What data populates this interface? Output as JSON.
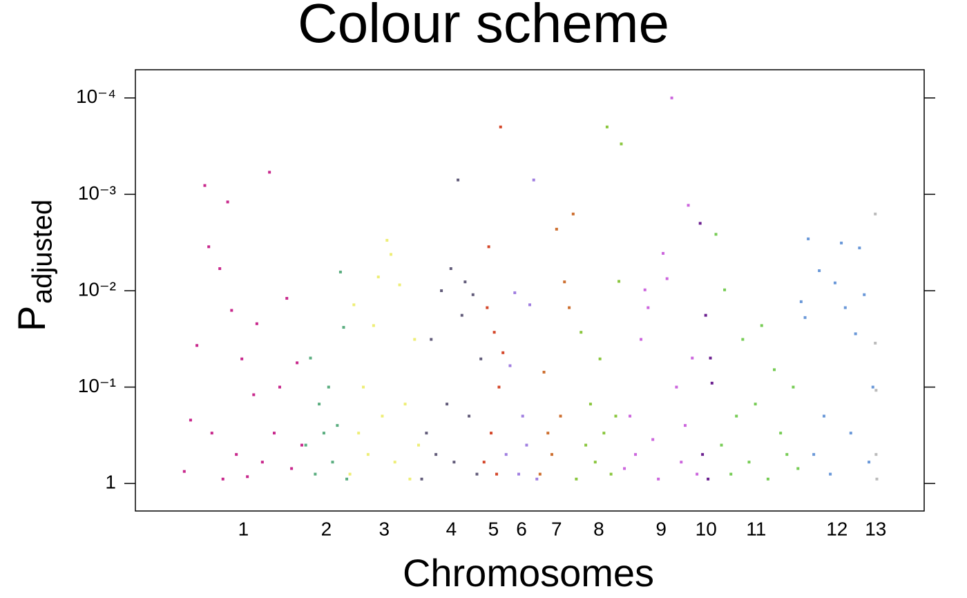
{
  "chart_data": {
    "type": "scatter",
    "title": "Colour scheme",
    "xlabel": "Chromosomes",
    "ylabel": "P",
    "ylabel_subscript": "adjusted",
    "log_y": true,
    "xlim": [
      0,
      100
    ],
    "ylim": [
      1.93,
      5.1e-05
    ],
    "yticks": [
      1,
      {
        "value": 0.1,
        "label": "10⁻¹"
      },
      {
        "value": 0.01,
        "label": "10⁻²"
      },
      {
        "value": 0.001,
        "label": "10⁻³"
      },
      {
        "value": 0.0001,
        "label": "10⁻⁴"
      }
    ],
    "series": [
      {
        "name": "1",
        "color": "#c8288c",
        "start": 6.0,
        "end": 21.4,
        "x": [
          6.2,
          7.0,
          7.8,
          8.8,
          9.3,
          9.7,
          10.7,
          11.1,
          11.7,
          12.2,
          12.8,
          13.5,
          14.2,
          15.0,
          15.4,
          16.1,
          17.0,
          17.6,
          18.3,
          19.2,
          19.8,
          20.5,
          21.1
        ],
        "values": [
          0.75,
          0.22,
          0.037,
          0.00081,
          0.0035,
          0.3,
          0.0059,
          0.9,
          0.0012,
          0.016,
          0.5,
          0.051,
          0.85,
          0.12,
          0.022,
          0.6,
          0.00059,
          0.3,
          0.1,
          0.012,
          0.7,
          0.056,
          0.4
        ]
      },
      {
        "name": "2",
        "color": "#5aad7f",
        "start": 21.4,
        "end": 27.0,
        "x": [
          21.6,
          22.2,
          22.8,
          23.3,
          23.9,
          24.5,
          25.0,
          25.6,
          26.0,
          26.4,
          26.8
        ],
        "values": [
          0.4,
          0.05,
          0.8,
          0.15,
          0.3,
          0.1,
          0.6,
          0.25,
          0.0064,
          0.024,
          0.9
        ]
      },
      {
        "name": "3",
        "color": "#eeee77",
        "start": 27.0,
        "end": 36.1,
        "x": [
          27.2,
          27.7,
          28.3,
          28.9,
          29.5,
          30.2,
          30.8,
          31.3,
          31.9,
          32.4,
          32.9,
          33.5,
          34.2,
          34.8,
          35.4,
          35.9
        ],
        "values": [
          0.8,
          0.014,
          0.3,
          0.1,
          0.5,
          0.023,
          0.0072,
          0.2,
          0.003,
          0.0042,
          0.6,
          0.0087,
          0.15,
          0.9,
          0.032,
          0.4
        ]
      },
      {
        "name": "4",
        "color": "#625c7a",
        "start": 36.1,
        "end": 44.0,
        "x": [
          36.3,
          36.9,
          37.5,
          38.1,
          38.8,
          39.5,
          40.0,
          40.4,
          40.9,
          41.4,
          41.8,
          42.3,
          42.8,
          43.3,
          43.8
        ],
        "values": [
          0.9,
          0.3,
          0.032,
          0.5,
          0.01,
          0.15,
          0.0059,
          0.6,
          0.00071,
          0.018,
          0.0081,
          0.2,
          0.011,
          0.8,
          0.051
        ]
      },
      {
        "name": "5",
        "color": "#d4472a",
        "start": 44.0,
        "end": 46.8,
        "x": [
          44.2,
          44.6,
          44.8,
          45.1,
          45.5,
          45.8,
          46.1,
          46.3,
          46.6
        ],
        "values": [
          0.6,
          0.015,
          0.0035,
          0.3,
          0.027,
          0.8,
          0.1,
          0.0002,
          0.044
        ]
      },
      {
        "name": "6",
        "color": "#a07ee0",
        "start": 46.8,
        "end": 51.1,
        "x": [
          47.0,
          47.5,
          48.1,
          48.6,
          49.1,
          49.6,
          50.0,
          50.5,
          50.9
        ],
        "values": [
          0.5,
          0.06,
          0.0105,
          0.8,
          0.2,
          0.4,
          0.014,
          0.00071,
          0.9
        ]
      },
      {
        "name": "7",
        "color": "#cd6f30",
        "start": 51.1,
        "end": 55.7,
        "x": [
          51.3,
          51.8,
          52.3,
          52.8,
          53.4,
          53.9,
          54.4,
          55.0,
          55.5
        ],
        "values": [
          0.8,
          0.07,
          0.3,
          0.5,
          0.0023,
          0.2,
          0.0081,
          0.015,
          0.0016
        ]
      },
      {
        "name": "8",
        "color": "#8ac63e",
        "start": 55.7,
        "end": 61.8,
        "x": [
          55.9,
          56.5,
          57.1,
          57.7,
          58.3,
          58.9,
          59.4,
          59.8,
          60.3,
          60.9,
          61.3,
          61.6
        ],
        "values": [
          0.9,
          0.027,
          0.4,
          0.15,
          0.6,
          0.051,
          0.3,
          0.0002,
          0.8,
          0.2,
          0.008,
          0.0003
        ]
      },
      {
        "name": "9",
        "color": "#cc66dd",
        "start": 61.8,
        "end": 71.5,
        "x": [
          62.0,
          62.7,
          63.4,
          64.1,
          64.6,
          65.0,
          65.6,
          66.3,
          66.9,
          67.4,
          68.0,
          68.6,
          69.2,
          69.7,
          70.1,
          70.6,
          71.2
        ],
        "values": [
          0.7,
          0.2,
          0.5,
          0.032,
          0.0098,
          0.015,
          0.35,
          0.9,
          0.0041,
          0.0075,
          0.0001,
          0.1,
          0.6,
          0.25,
          0.0013,
          0.05,
          0.8
        ]
      },
      {
        "name": "10",
        "color": "#6b1f8f",
        "start": 71.5,
        "end": 73.2,
        "x": [
          71.6,
          71.9,
          72.3,
          72.6,
          72.9,
          73.1
        ],
        "values": [
          0.002,
          0.5,
          0.018,
          0.9,
          0.05,
          0.091
        ]
      },
      {
        "name": "11",
        "color": "#77cc55",
        "start": 73.2,
        "end": 84.2,
        "x": [
          73.6,
          74.3,
          74.7,
          75.5,
          76.2,
          77.0,
          77.8,
          78.6,
          79.4,
          80.2,
          81.0,
          81.8,
          82.6,
          83.4,
          84.0
        ],
        "values": [
          0.0026,
          0.4,
          0.0098,
          0.8,
          0.2,
          0.032,
          0.6,
          0.15,
          0.023,
          0.9,
          0.066,
          0.3,
          0.5,
          0.1,
          0.7
        ]
      },
      {
        "name": "12",
        "color": "#6a98d8",
        "start": 84.2,
        "end": 93.7,
        "x": [
          84.4,
          84.9,
          85.3,
          86.0,
          86.7,
          87.3,
          88.1,
          88.7,
          89.5,
          90.0,
          90.7,
          91.3,
          91.8,
          92.4,
          93.0,
          93.5
        ],
        "values": [
          0.013,
          0.019,
          0.0029,
          0.5,
          0.0062,
          0.2,
          0.8,
          0.0083,
          0.0032,
          0.015,
          0.3,
          0.028,
          0.0036,
          0.011,
          0.6,
          0.1
        ]
      },
      {
        "name": "13",
        "color": "#bbbbbb",
        "start": 93.7,
        "end": 94.0,
        "x": [
          93.8,
          93.8,
          93.9,
          93.9,
          94.0
        ],
        "values": [
          0.0016,
          0.035,
          0.108,
          0.5,
          0.9
        ]
      }
    ]
  }
}
